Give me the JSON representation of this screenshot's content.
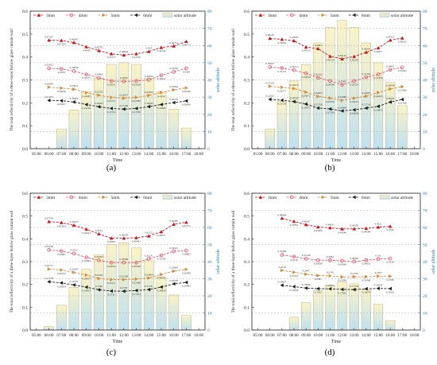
{
  "figure": {
    "time_labels": [
      "05:00",
      "06:00",
      "07:00",
      "08:00",
      "09:00",
      "10:00",
      "11:00",
      "12:00",
      "13:00",
      "14:00",
      "15:00",
      "16:00",
      "17:00",
      "18:00"
    ],
    "left_ticks": [
      "0.0",
      "0.1",
      "0.2",
      "0.3",
      "0.4",
      "0.5",
      "0.6"
    ],
    "right_ticks": [
      "0",
      "10",
      "20",
      "30",
      "40",
      "50",
      "60",
      "70",
      "80"
    ],
    "ylabel_left": "The total reflectivity of a three-layer hollow glass curtain wall",
    "ylabel_right": "solar altitude",
    "xlabel": "Time",
    "legend": [
      "3mm",
      "4mm",
      "5mm",
      "6mm",
      "solar altitude"
    ],
    "colors": {
      "mm3": "#c0151b",
      "mm4": "#e0556e",
      "mm5": "#d08a3a",
      "mm6": "#1a1a1a",
      "bar_top": "#fbf3c6",
      "bar_bottom": "#bfe1f0",
      "bar_edge": "#b7b38b",
      "right_axis": "#2e7fb3"
    }
  },
  "chart_data": [
    {
      "type": "bar",
      "panel": "(a)",
      "x": [
        "07:00",
        "08:00",
        "09:00",
        "10:00",
        "11:00",
        "12:00",
        "13:00",
        "14:00",
        "15:00",
        "16:00",
        "17:00"
      ],
      "x_range": [
        "05:00",
        "18:00"
      ],
      "ylim_left": [
        0,
        0.6
      ],
      "ylim_right": [
        0,
        80
      ],
      "grid": "dashed horizontal lines",
      "legend_position": "top",
      "series": [
        {
          "name": "3mm",
          "axis": "left",
          "type": "line",
          "x": [
            "06:00",
            "07:00",
            "08:00",
            "09:00",
            "10:00",
            "11:00",
            "12:00",
            "13:00",
            "14:00",
            "15:00",
            "16:00",
            "17:00"
          ],
          "values": [
            0.47337,
            0.47209,
            0.46287,
            0.4443,
            0.42792,
            0.41377,
            0.40834,
            0.41379,
            0.424,
            0.44139,
            0.44751,
            0.46773
          ],
          "labels": [
            "0.47337",
            "0.47209",
            "0.46287",
            "0.4443",
            "0.42792",
            "0.41377",
            "0.40834",
            "0.41379",
            "0.424",
            "0.44139",
            "0.44751",
            "0.46773"
          ]
        },
        {
          "name": "4mm",
          "axis": "left",
          "type": "line",
          "x": [
            "06:00",
            "07:00",
            "08:00",
            "09:00",
            "10:00",
            "11:00",
            "12:00",
            "13:00",
            "14:00",
            "15:00",
            "16:00",
            "17:00"
          ],
          "values": [
            0.35052,
            0.3479,
            0.33858,
            0.32377,
            0.30903,
            0.29521,
            0.2936,
            0.29529,
            0.30023,
            0.32022,
            0.33506,
            0.3504
          ],
          "labels": [
            "0.35052",
            "0.3479",
            "0.33858",
            "0.32377",
            "0.30903",
            "0.29521",
            "0.2936",
            "0.29529",
            "0.30023",
            "0.32022",
            "0.33506",
            "0.3504"
          ]
        },
        {
          "name": "5mm",
          "axis": "left",
          "type": "line",
          "x": [
            "06:00",
            "07:00",
            "08:00",
            "09:00",
            "10:00",
            "11:00",
            "12:00",
            "13:00",
            "14:00",
            "15:00",
            "16:00",
            "17:00"
          ],
          "values": [
            0.26839,
            0.26449,
            0.25911,
            0.24487,
            0.23322,
            0.22371,
            0.22017,
            0.22382,
            0.23253,
            0.2452,
            0.25664,
            0.26528
          ],
          "labels": [
            "0.26839",
            "0.26449",
            "0.25911",
            "0.24487",
            "0.23322",
            "0.22371",
            "0.22017",
            "0.22382",
            "0.23253",
            "0.2452",
            "0.25664",
            "0.26528"
          ]
        },
        {
          "name": "6mm",
          "axis": "left",
          "type": "line",
          "x": [
            "06:00",
            "07:00",
            "08:00",
            "09:00",
            "10:00",
            "11:00",
            "12:00",
            "13:00",
            "14:00",
            "15:00",
            "16:00",
            "17:00"
          ],
          "values": [
            0.21057,
            0.20927,
            0.20362,
            0.19263,
            0.18295,
            0.17555,
            0.17258,
            0.17558,
            0.18343,
            0.19268,
            0.20103,
            0.20859
          ],
          "labels": [
            "0.21057",
            "0.20927",
            "0.20362",
            "0.19263",
            "0.18295",
            "0.17555",
            "0.17258",
            "0.17558",
            "0.18343",
            "0.19268",
            "0.20103",
            "0.20859"
          ]
        },
        {
          "name": "solar altitude",
          "axis": "right",
          "type": "bar",
          "x": [
            "07:00",
            "08:00",
            "09:00",
            "10:00",
            "11:00",
            "12:00",
            "13:00",
            "14:00",
            "15:00",
            "16:00",
            "17:00"
          ],
          "values": [
            11.5,
            22.5,
            33,
            41,
            49,
            50,
            49,
            41,
            33,
            23,
            12
          ]
        }
      ]
    },
    {
      "type": "bar",
      "panel": "(b)",
      "x_range": [
        "05:00",
        "18:00"
      ],
      "ylim_left": [
        0,
        0.6
      ],
      "ylim_right": [
        0,
        80
      ],
      "series": [
        {
          "name": "3mm",
          "axis": "left",
          "type": "line",
          "x": [
            "06:00",
            "07:00",
            "08:00",
            "09:00",
            "10:00",
            "11:00",
            "12:00",
            "13:00",
            "14:00",
            "15:00",
            "16:00",
            "17:00"
          ],
          "values": [
            0.48105,
            0.47694,
            0.47085,
            0.44315,
            0.4363,
            0.40314,
            0.39142,
            0.40234,
            0.42062,
            0.43957,
            0.47327,
            0.48232
          ],
          "labels": [
            "0.48105",
            "0.47694",
            "0.47085",
            "0.44315",
            "0.4363",
            "0.40314",
            "0.39142",
            "0.40234",
            "0.42062",
            "0.43957",
            "0.47327",
            "0.48232"
          ]
        },
        {
          "name": "4mm",
          "axis": "left",
          "type": "line",
          "x": [
            "06:00",
            "07:00",
            "08:00",
            "09:00",
            "10:00",
            "11:00",
            "12:00",
            "13:00",
            "14:00",
            "15:00",
            "16:00",
            "17:00"
          ],
          "values": [
            0.35627,
            0.35175,
            0.34275,
            0.32834,
            0.31012,
            0.29548,
            0.2789,
            0.29533,
            0.31162,
            0.32396,
            0.34451,
            0.35464
          ],
          "labels": [
            "0.35627",
            "0.35175",
            "0.34275",
            "0.32834",
            "0.31012",
            "0.29548",
            "0.2789",
            "0.29533",
            "0.31162",
            "0.32396",
            "0.34451",
            "0.35464"
          ]
        },
        {
          "name": "5mm",
          "axis": "left",
          "type": "line",
          "x": [
            "06:00",
            "07:00",
            "08:00",
            "09:00",
            "10:00",
            "11:00",
            "12:00",
            "13:00",
            "14:00",
            "15:00",
            "16:00",
            "17:00"
          ],
          "values": [
            0.27218,
            0.26771,
            0.26225,
            0.24671,
            0.22823,
            0.22079,
            0.21068,
            0.22015,
            0.22907,
            0.24453,
            0.26048,
            0.27066
          ],
          "labels": [
            "0.27218",
            "0.26771",
            "0.26225",
            "0.24671",
            "0.22823",
            "0.22079",
            "0.21068",
            "0.22015",
            "0.22907",
            "0.24453",
            "0.26048",
            "0.27066"
          ]
        },
        {
          "name": "6mm",
          "axis": "left",
          "type": "line",
          "x": [
            "06:00",
            "07:00",
            "08:00",
            "09:00",
            "10:00",
            "11:00",
            "12:00",
            "13:00",
            "14:00",
            "15:00",
            "16:00",
            "17:00"
          ],
          "values": [
            0.21531,
            0.21134,
            0.20542,
            0.19471,
            0.17728,
            0.17334,
            0.16484,
            0.16939,
            0.17718,
            0.18453,
            0.20341,
            0.21468
          ],
          "labels": [
            "0.21531",
            "0.21134",
            "0.20542",
            "0.19471",
            "0.17728",
            "0.17334",
            "0.16484",
            "0.16939",
            "0.17718",
            "0.18453",
            "0.20341",
            "0.21468"
          ]
        },
        {
          "name": "solar altitude",
          "axis": "right",
          "type": "bar",
          "x": [
            "06:00",
            "07:00",
            "08:00",
            "09:00",
            "10:00",
            "11:00",
            "12:00",
            "13:00",
            "14:00",
            "15:00",
            "16:00",
            "17:00"
          ],
          "values": [
            11.5,
            27.5,
            39.5,
            49,
            61.5,
            70.5,
            74.5,
            70.5,
            61.5,
            50,
            38.5,
            25
          ]
        }
      ]
    },
    {
      "type": "bar",
      "panel": "(c)",
      "x_range": [
        "05:00",
        "18:00"
      ],
      "ylim_left": [
        0,
        0.6
      ],
      "ylim_right": [
        0,
        80
      ],
      "series": [
        {
          "name": "3mm",
          "axis": "left",
          "type": "line",
          "x": [
            "06:00",
            "07:00",
            "08:00",
            "09:00",
            "10:00",
            "11:00",
            "12:00",
            "13:00",
            "14:00",
            "15:00",
            "16:00",
            "17:00"
          ],
          "values": [
            0.47559,
            0.47103,
            0.45947,
            0.44213,
            0.4214,
            0.40267,
            0.40283,
            0.40491,
            0.41253,
            0.43071,
            0.46385,
            0.47271
          ],
          "labels": [
            "0.47559",
            "0.47103",
            "0.45947",
            "0.44213",
            "0.4214",
            "0.40267",
            "0.40283",
            "0.40491",
            "0.41253",
            "0.43071",
            "0.46385",
            "0.47271"
          ]
        },
        {
          "name": "4mm",
          "axis": "left",
          "type": "line",
          "x": [
            "06:00",
            "07:00",
            "08:00",
            "09:00",
            "10:00",
            "11:00",
            "12:00",
            "13:00",
            "14:00",
            "15:00",
            "16:00",
            "17:00"
          ],
          "values": [
            0.35108,
            0.34661,
            0.3353,
            0.31861,
            0.30582,
            0.29544,
            0.29589,
            0.29548,
            0.31231,
            0.32769,
            0.34521,
            0.34862
          ],
          "labels": [
            "0.35108",
            "0.34661",
            "0.3353",
            "0.31861",
            "0.30582",
            "0.29544",
            "0.29589",
            "0.29548",
            "0.31231",
            "0.32769",
            "0.34521",
            "0.34862"
          ]
        },
        {
          "name": "5mm",
          "axis": "left",
          "type": "line",
          "x": [
            "06:00",
            "07:00",
            "08:00",
            "09:00",
            "10:00",
            "11:00",
            "12:00",
            "13:00",
            "14:00",
            "15:00",
            "16:00",
            "17:00"
          ],
          "values": [
            0.26717,
            0.26352,
            0.25287,
            0.24077,
            0.22581,
            0.22111,
            0.22109,
            0.22366,
            0.22804,
            0.24351,
            0.25845,
            0.26598
          ],
          "labels": [
            "0.26717",
            "0.26352",
            "0.25287",
            "0.24077",
            "0.22581",
            "0.22111",
            "0.22109",
            "0.22366",
            "0.22804",
            "0.24351",
            "0.25845",
            "0.26598"
          ]
        },
        {
          "name": "6mm",
          "axis": "left",
          "type": "line",
          "x": [
            "06:00",
            "07:00",
            "08:00",
            "09:00",
            "10:00",
            "11:00",
            "12:00",
            "13:00",
            "14:00",
            "15:00",
            "16:00",
            "17:00"
          ],
          "values": [
            0.21178,
            0.20654,
            0.19782,
            0.18815,
            0.1766,
            0.1711,
            0.1702,
            0.17351,
            0.17731,
            0.18838,
            0.20239,
            0.20893
          ],
          "labels": [
            "0.21178",
            "0.20654",
            "0.19782",
            "0.18815",
            "0.1766",
            "0.1711",
            "0.1702",
            "0.17351",
            "0.17731",
            "0.18838",
            "0.20239",
            "0.20893"
          ]
        },
        {
          "name": "solar altitude",
          "axis": "right",
          "type": "bar",
          "x": [
            "06:00",
            "07:00",
            "08:00",
            "09:00",
            "10:00",
            "11:00",
            "12:00",
            "13:00",
            "14:00",
            "15:00",
            "16:00",
            "17:00"
          ],
          "values": [
            2,
            14.5,
            25,
            35.5,
            44,
            50,
            51,
            48,
            41,
            31,
            20.5,
            8.5
          ]
        }
      ]
    },
    {
      "type": "bar",
      "panel": "(d)",
      "x_range": [
        "05:00",
        "18:00"
      ],
      "ylim_left": [
        0,
        0.6
      ],
      "ylim_right": [
        0,
        80
      ],
      "series": [
        {
          "name": "3mm",
          "axis": "left",
          "type": "line",
          "x": [
            "07:00",
            "08:00",
            "09:00",
            "10:00",
            "11:00",
            "12:00",
            "13:00",
            "14:00",
            "15:00",
            "16:00"
          ],
          "values": [
            0.48994,
            0.47661,
            0.46197,
            0.45209,
            0.44811,
            0.44346,
            0.44359,
            0.44584,
            0.4511,
            0.4546
          ],
          "labels": [
            "0.48994",
            "0.47661",
            "0.46197",
            "0.45209",
            "0.44811",
            "0.44346",
            "0.44359",
            "0.44584",
            "0.4511",
            "0.4546"
          ]
        },
        {
          "name": "4mm",
          "axis": "left",
          "type": "line",
          "x": [
            "07:00",
            "08:00",
            "09:00",
            "10:00",
            "11:00",
            "12:00",
            "13:00",
            "14:00",
            "15:00",
            "16:00"
          ],
          "values": [
            0.32986,
            0.3219,
            0.31249,
            0.30636,
            0.3062,
            0.30384,
            0.30006,
            0.30632,
            0.311,
            0.3134
          ],
          "labels": [
            "0.32986",
            "0.3219",
            "0.31249",
            "0.30636",
            "0.3062",
            "0.30384",
            "0.30006",
            "0.30632",
            "0.311",
            "0.3134"
          ]
        },
        {
          "name": "5mm",
          "axis": "left",
          "type": "line",
          "x": [
            "07:00",
            "08:00",
            "09:00",
            "10:00",
            "11:00",
            "12:00",
            "13:00",
            "14:00",
            "15:00",
            "16:00"
          ],
          "values": [
            0.2618,
            0.25347,
            0.2447,
            0.2391,
            0.2378,
            0.23296,
            0.2336,
            0.23366,
            0.2363,
            0.2359
          ],
          "labels": [
            "0.2618",
            "0.25347",
            "0.2447",
            "0.2391",
            "0.2378",
            "0.23296",
            "0.2336",
            "0.23366",
            "0.2363",
            "0.2359"
          ]
        },
        {
          "name": "6mm",
          "axis": "left",
          "type": "line",
          "x": [
            "07:00",
            "08:00",
            "09:00",
            "10:00",
            "11:00",
            "12:00",
            "13:00",
            "14:00",
            "15:00",
            "16:00"
          ],
          "values": [
            0.19627,
            0.19038,
            0.18396,
            0.1812,
            0.18072,
            0.17825,
            0.17726,
            0.18079,
            0.18236,
            0.18161
          ],
          "labels": [
            "0.19627",
            "0.19038",
            "0.18396",
            "0.1812",
            "0.18072",
            "0.17825",
            "0.17726",
            "0.18079",
            "0.18236",
            "0.18161"
          ]
        },
        {
          "name": "solar altitude",
          "axis": "right",
          "type": "bar",
          "x": [
            "08:00",
            "09:00",
            "10:00",
            "11:00",
            "12:00",
            "13:00",
            "14:00",
            "15:00",
            "16:00"
          ],
          "values": [
            7.5,
            16,
            23,
            26,
            28,
            27,
            23.5,
            15,
            5.5
          ]
        }
      ]
    }
  ]
}
